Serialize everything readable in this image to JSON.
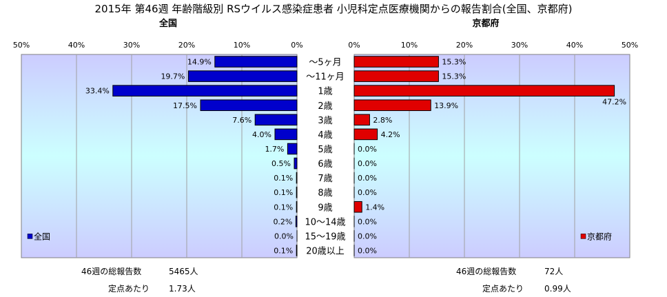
{
  "title": "2015年 第46週 年齢階級別 RSウイルス感染症患者 小児科定点医療機関からの報告割合(全国、京都府)",
  "chart_data": [
    {
      "type": "bar",
      "orientation": "horizontal",
      "direction": "right-to-left",
      "title": "全国",
      "categories": [
        "～5ヶ月",
        "～11ヶ月",
        "1歳",
        "2歳",
        "3歳",
        "4歳",
        "5歳",
        "6歳",
        "7歳",
        "8歳",
        "9歳",
        "10～14歳",
        "15～19歳",
        "20歳以上"
      ],
      "series": [
        {
          "name": "全国",
          "color": "#0000CC",
          "values": [
            14.9,
            19.7,
            33.4,
            17.5,
            7.6,
            4.0,
            1.7,
            0.5,
            0.1,
            0.1,
            0.1,
            0.2,
            0.0,
            0.1
          ]
        }
      ],
      "data_labels": [
        "14.9%",
        "19.7%",
        "33.4%",
        "17.5%",
        "7.6%",
        "4.0%",
        "1.7%",
        "0.5%",
        "0.1%",
        "0.1%",
        "0.1%",
        "0.2%",
        "0.0%",
        "0.1%"
      ],
      "xlim": [
        0,
        50
      ],
      "xticks": [
        "0%",
        "10%",
        "20%",
        "30%",
        "40%",
        "50%"
      ],
      "grid": true,
      "legend": "bottom-left"
    },
    {
      "type": "bar",
      "orientation": "horizontal",
      "title": "京都府",
      "categories": [
        "～5ヶ月",
        "～11ヶ月",
        "1歳",
        "2歳",
        "3歳",
        "4歳",
        "5歳",
        "6歳",
        "7歳",
        "8歳",
        "9歳",
        "10～14歳",
        "15～19歳",
        "20歳以上"
      ],
      "series": [
        {
          "name": "京都府",
          "color": "#E00000",
          "values": [
            15.3,
            15.3,
            47.2,
            13.9,
            2.8,
            4.2,
            0.0,
            0.0,
            0.0,
            0.0,
            1.4,
            0.0,
            0.0,
            0.0
          ]
        }
      ],
      "data_labels": [
        "15.3%",
        "15.3%",
        "47.2%",
        "13.9%",
        "2.8%",
        "4.2%",
        "0.0%",
        "0.0%",
        "0.0%",
        "0.0%",
        "1.4%",
        "0.0%",
        "0.0%",
        "0.0%"
      ],
      "xlim": [
        0,
        50
      ],
      "xticks": [
        "0%",
        "10%",
        "20%",
        "30%",
        "40%",
        "50%"
      ],
      "grid": true,
      "legend": "bottom-right"
    }
  ],
  "footer": {
    "national": {
      "total_label": "46週の総報告数",
      "total_value": "5465人",
      "per_label": "定点あたり",
      "per_value": "1.73人"
    },
    "kyoto": {
      "total_label": "46週の総報告数",
      "total_value": "72人",
      "per_label": "定点あたり",
      "per_value": "0.99人"
    }
  },
  "colors": {
    "plot_top": "#CCCCFF",
    "plot_bottom": "#CCFFFF",
    "grid": "#A0A0A0"
  }
}
